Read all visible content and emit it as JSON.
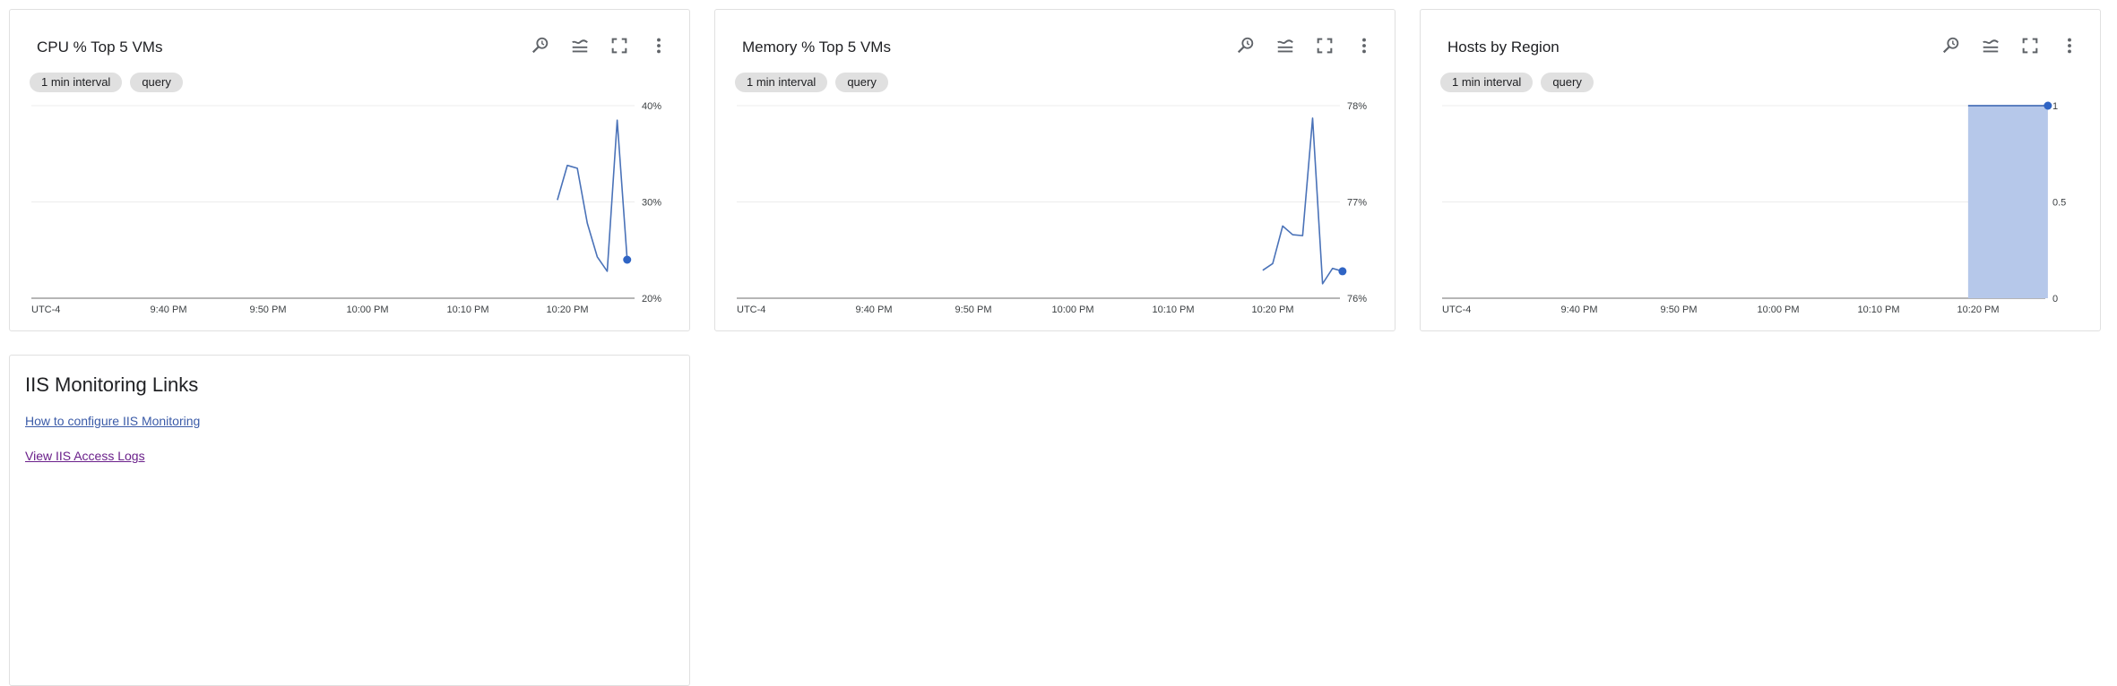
{
  "colors": {
    "line": "#4a72b8",
    "area": "#b6c8ea",
    "point": "#2f64c4",
    "grid": "#ececec",
    "axis": "#9e9e9e"
  },
  "tools": [
    "search-history-icon",
    "legend-icon",
    "fullscreen-icon",
    "more-vert-icon"
  ],
  "chips": {
    "interval": "1 min interval",
    "query": "query"
  },
  "x_ticks": [
    "UTC-4",
    "9:40 PM",
    "9:50 PM",
    "10:00 PM",
    "10:10 PM",
    "10:20 PM"
  ],
  "chart_data": [
    {
      "type": "line",
      "title": "CPU % Top 5 VMs",
      "x": [
        "10:19 PM",
        "10:20 PM",
        "10:21 PM",
        "10:22 PM",
        "10:23 PM",
        "10:24 PM",
        "10:25 PM",
        "10:26 PM"
      ],
      "series": [
        {
          "values": [
            30.2,
            33.8,
            33.5,
            27.8,
            24.3,
            22.8,
            38.5,
            24.0
          ]
        }
      ],
      "ylim": [
        20,
        40
      ],
      "y_ticks": [
        "40%",
        "30%",
        "20%"
      ],
      "grid": true
    },
    {
      "type": "line",
      "title": "Memory % Top 5 VMs",
      "x": [
        "10:19 PM",
        "10:20 PM",
        "10:21 PM",
        "10:22 PM",
        "10:23 PM",
        "10:24 PM",
        "10:25 PM",
        "10:26 PM",
        "10:27 PM"
      ],
      "series": [
        {
          "values": [
            76.29,
            76.36,
            76.75,
            76.66,
            76.65,
            77.87,
            76.15,
            76.31,
            76.28
          ]
        }
      ],
      "ylim": [
        76,
        78
      ],
      "y_ticks": [
        "78%",
        "77%",
        "76%"
      ],
      "grid": true
    },
    {
      "type": "area",
      "title": "Hosts by Region",
      "x": [
        "10:19 PM",
        "10:27 PM"
      ],
      "series": [
        {
          "values": [
            1,
            1
          ]
        }
      ],
      "ylim": [
        0,
        1
      ],
      "y_ticks": [
        "1",
        "0.5",
        "0"
      ],
      "grid": true
    }
  ],
  "links_panel": {
    "title": "IIS Monitoring Links",
    "link1": "How to configure IIS Monitoring",
    "link2": "View IIS Access Logs"
  }
}
